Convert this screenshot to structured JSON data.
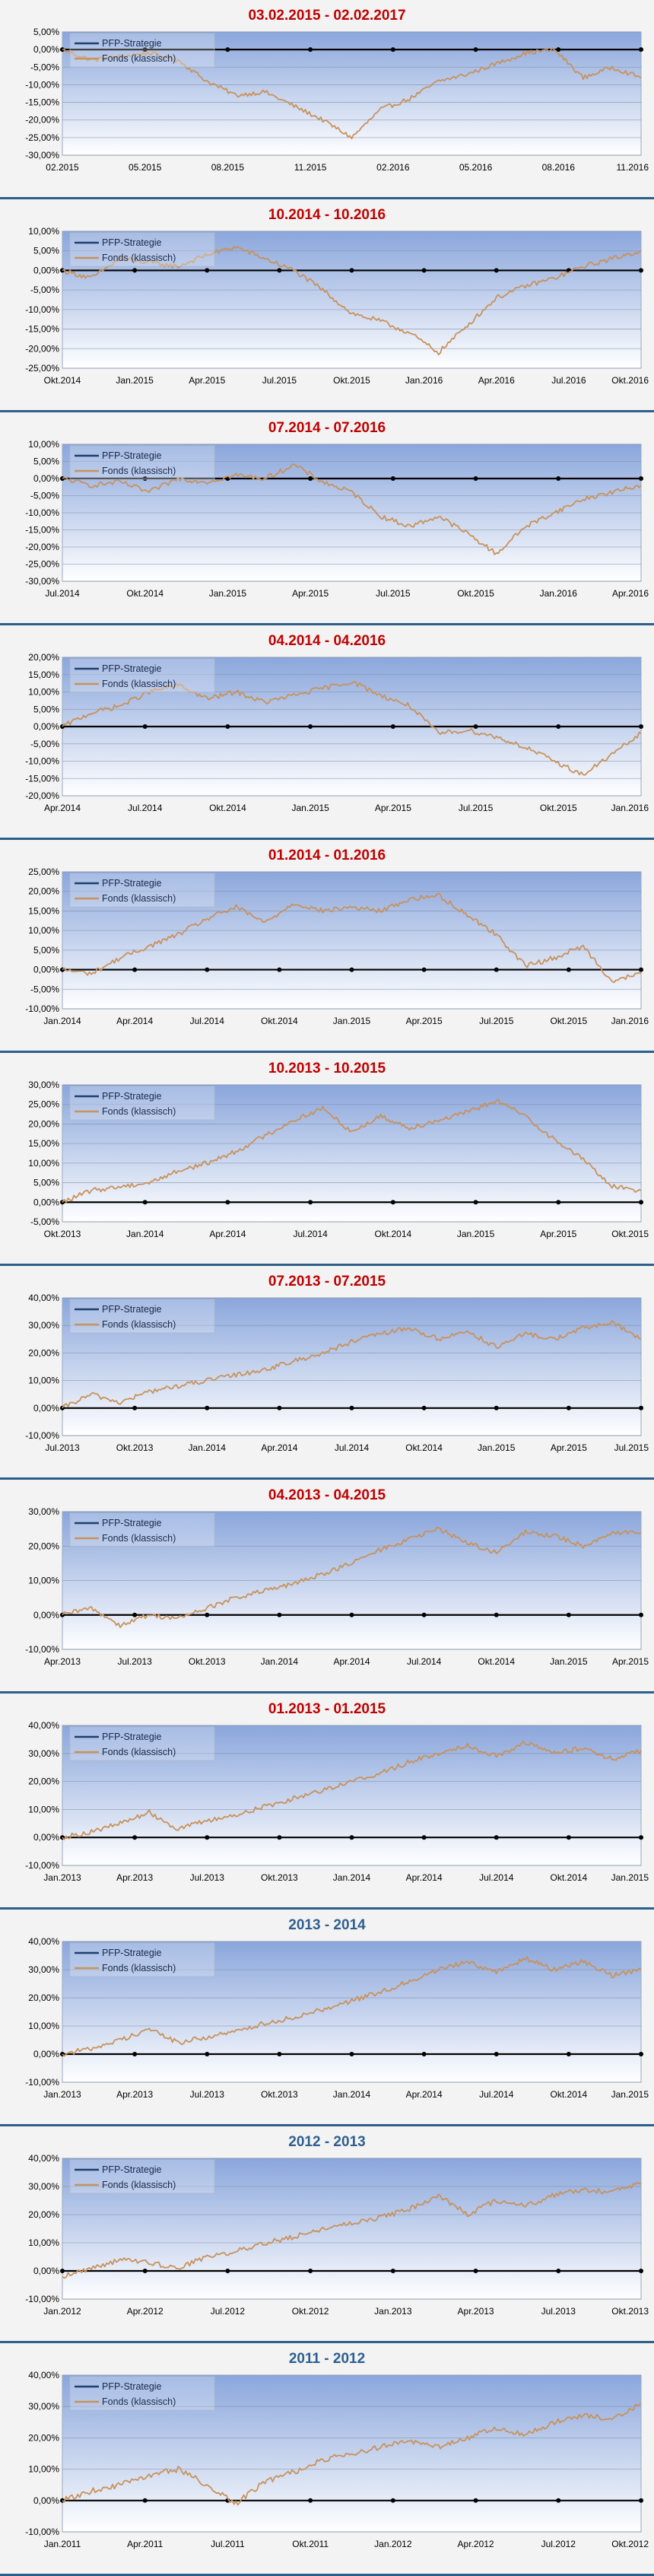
{
  "legend": {
    "series1": "PFP-Strategie",
    "series2": "Fonds (klassisch)"
  },
  "colors": {
    "title_red": "#c00000",
    "title_blue": "#2e5f8f",
    "fund_line": "#c8925c",
    "pfp_line": "#1f3f6e",
    "zero_line": "#000000",
    "plot_top": "#8aa6dc",
    "plot_bottom": "#ffffff",
    "separator": "#2c5f8a"
  },
  "chart_data": [
    {
      "type": "line",
      "title": "03.02.2015 - 02.02.2017",
      "title_color": "red",
      "yticks": [
        "5,00%",
        "0,00%",
        "-5,00%",
        "-10,00%",
        "-15,00%",
        "-20,00%",
        "-25,00%",
        "-30,00%"
      ],
      "ylim": [
        -30,
        5
      ],
      "xticks": [
        "02.2015",
        "05.2015",
        "08.2015",
        "11.2015",
        "02.2016",
        "05.2016",
        "08.2016",
        "11.2016"
      ],
      "series": [
        {
          "name": "Fonds (klassisch)",
          "x": [
            0,
            0.05,
            0.1,
            0.15,
            0.2,
            0.25,
            0.3,
            0.35,
            0.4,
            0.45,
            0.5,
            0.55,
            0.6,
            0.65,
            0.7,
            0.75,
            0.8,
            0.85,
            0.9,
            0.95,
            1
          ],
          "values": [
            0,
            -3,
            -2,
            -1,
            -3,
            -9,
            -13,
            -12,
            -16,
            -20,
            -25,
            -17,
            -14,
            -9,
            -7,
            -4,
            -1,
            0,
            -8,
            -5,
            -8
          ]
        }
      ]
    },
    {
      "type": "line",
      "title": "10.2014 - 10.2016",
      "title_color": "red",
      "yticks": [
        "10,00%",
        "5,00%",
        "0,00%",
        "-5,00%",
        "-10,00%",
        "-15,00%",
        "-20,00%",
        "-25,00%"
      ],
      "ylim": [
        -25,
        10
      ],
      "xticks": [
        "Okt.2014",
        "Jan.2015",
        "Apr.2015",
        "Jul.2015",
        "Okt.2015",
        "Jan.2016",
        "Apr.2016",
        "Jul.2016",
        "Okt.2016"
      ],
      "series": [
        {
          "name": "Fonds (klassisch)",
          "x": [
            0,
            0.05,
            0.1,
            0.15,
            0.2,
            0.25,
            0.3,
            0.35,
            0.4,
            0.45,
            0.5,
            0.55,
            0.6,
            0.65,
            0.7,
            0.75,
            0.8,
            0.85,
            0.9,
            0.95,
            1
          ],
          "values": [
            0,
            -2,
            3,
            2,
            1,
            4,
            6,
            3,
            0,
            -5,
            -11,
            -13,
            -16,
            -21,
            -14,
            -7,
            -4,
            -2,
            1,
            3,
            5
          ]
        }
      ]
    },
    {
      "type": "line",
      "title": "07.2014 - 07.2016",
      "title_color": "red",
      "yticks": [
        "10,00%",
        "5,00%",
        "0,00%",
        "-5,00%",
        "-10,00%",
        "-15,00%",
        "-20,00%",
        "-25,00%",
        "-30,00%"
      ],
      "ylim": [
        -30,
        10
      ],
      "xticks": [
        "Jul.2014",
        "Okt.2014",
        "Jan.2015",
        "Apr.2015",
        "Jul.2015",
        "Okt.2015",
        "Jan.2016",
        "Apr.2016"
      ],
      "series": [
        {
          "name": "Fonds (klassisch)",
          "x": [
            0,
            0.05,
            0.1,
            0.15,
            0.2,
            0.25,
            0.3,
            0.35,
            0.4,
            0.45,
            0.5,
            0.55,
            0.6,
            0.65,
            0.7,
            0.75,
            0.8,
            0.85,
            0.9,
            0.95,
            1
          ],
          "values": [
            0,
            -2,
            -1,
            -4,
            0,
            -1,
            1,
            0,
            4,
            -1,
            -4,
            -11,
            -14,
            -11,
            -16,
            -22,
            -14,
            -10,
            -6,
            -4,
            -2
          ]
        }
      ]
    },
    {
      "type": "line",
      "title": "04.2014 - 04.2016",
      "title_color": "red",
      "yticks": [
        "20,00%",
        "15,00%",
        "10,00%",
        "5,00%",
        "0,00%",
        "-5,00%",
        "-10,00%",
        "-15,00%",
        "-20,00%"
      ],
      "ylim": [
        -20,
        20
      ],
      "xticks": [
        "Apr.2014",
        "Jul.2014",
        "Okt.2014",
        "Jan.2015",
        "Apr.2015",
        "Jul.2015",
        "Okt.2015",
        "Jan.2016"
      ],
      "series": [
        {
          "name": "Fonds (klassisch)",
          "x": [
            0,
            0.05,
            0.1,
            0.15,
            0.2,
            0.25,
            0.3,
            0.35,
            0.4,
            0.45,
            0.5,
            0.55,
            0.6,
            0.65,
            0.7,
            0.75,
            0.8,
            0.85,
            0.9,
            0.95,
            1
          ],
          "values": [
            0,
            4,
            6,
            10,
            12,
            8,
            10,
            7,
            9,
            11,
            13,
            9,
            6,
            -2,
            -1,
            -3,
            -6,
            -10,
            -14,
            -8,
            -2
          ]
        }
      ]
    },
    {
      "type": "line",
      "title": "01.2014 - 01.2016",
      "title_color": "red",
      "yticks": [
        "25,00%",
        "20,00%",
        "15,00%",
        "10,00%",
        "5,00%",
        "0,00%",
        "-5,00%",
        "-10,00%"
      ],
      "ylim": [
        -10,
        25
      ],
      "xticks": [
        "Jan.2014",
        "Apr.2014",
        "Jul.2014",
        "Okt.2014",
        "Jan.2015",
        "Apr.2015",
        "Jul.2015",
        "Okt.2015",
        "Jan.2016"
      ],
      "series": [
        {
          "name": "Fonds (klassisch)",
          "x": [
            0,
            0.05,
            0.1,
            0.15,
            0.2,
            0.25,
            0.3,
            0.35,
            0.4,
            0.45,
            0.5,
            0.55,
            0.6,
            0.65,
            0.7,
            0.75,
            0.8,
            0.85,
            0.9,
            0.95,
            1
          ],
          "values": [
            0,
            -1,
            3,
            6,
            9,
            13,
            16,
            12,
            17,
            15,
            16,
            15,
            18,
            19,
            14,
            9,
            1,
            3,
            6,
            -3,
            -1
          ]
        }
      ]
    },
    {
      "type": "line",
      "title": "10.2013 - 10.2015",
      "title_color": "red",
      "yticks": [
        "30,00%",
        "25,00%",
        "20,00%",
        "15,00%",
        "10,00%",
        "5,00%",
        "0,00%",
        "-5,00%"
      ],
      "ylim": [
        -5,
        30
      ],
      "xticks": [
        "Okt.2013",
        "Jan.2014",
        "Apr.2014",
        "Jul.2014",
        "Okt.2014",
        "Jan.2015",
        "Apr.2015",
        "Okt.2015"
      ],
      "series": [
        {
          "name": "Fonds (klassisch)",
          "x": [
            0,
            0.05,
            0.1,
            0.15,
            0.2,
            0.25,
            0.3,
            0.35,
            0.4,
            0.45,
            0.5,
            0.55,
            0.6,
            0.65,
            0.7,
            0.75,
            0.8,
            0.85,
            0.9,
            0.95,
            1
          ],
          "values": [
            0,
            3,
            4,
            5,
            8,
            10,
            13,
            17,
            21,
            24,
            18,
            22,
            19,
            21,
            23,
            26,
            22,
            16,
            11,
            4,
            3
          ]
        }
      ]
    },
    {
      "type": "line",
      "title": "07.2013 - 07.2015",
      "title_color": "red",
      "yticks": [
        "40,00%",
        "30,00%",
        "20,00%",
        "10,00%",
        "0,00%",
        "-10,00%"
      ],
      "ylim": [
        -10,
        40
      ],
      "xticks": [
        "Jul.2013",
        "Okt.2013",
        "Jan.2014",
        "Apr.2014",
        "Jul.2014",
        "Okt.2014",
        "Jan.2015",
        "Apr.2015",
        "Jul.2015"
      ],
      "series": [
        {
          "name": "Fonds (klassisch)",
          "x": [
            0,
            0.05,
            0.1,
            0.15,
            0.2,
            0.25,
            0.3,
            0.35,
            0.4,
            0.45,
            0.5,
            0.55,
            0.6,
            0.65,
            0.7,
            0.75,
            0.8,
            0.85,
            0.9,
            0.95,
            1
          ],
          "values": [
            0,
            5,
            2,
            6,
            8,
            10,
            12,
            14,
            17,
            20,
            24,
            27,
            29,
            25,
            28,
            22,
            27,
            25,
            29,
            31,
            25
          ]
        }
      ]
    },
    {
      "type": "line",
      "title": "04.2013 - 04.2015",
      "title_color": "red",
      "yticks": [
        "30,00%",
        "20,00%",
        "10,00%",
        "0,00%",
        "-10,00%"
      ],
      "ylim": [
        -10,
        30
      ],
      "xticks": [
        "Apr.2013",
        "Jul.2013",
        "Okt.2013",
        "Jan.2014",
        "Apr.2014",
        "Jul.2014",
        "Okt.2014",
        "Jan.2015",
        "Apr.2015"
      ],
      "series": [
        {
          "name": "Fonds (klassisch)",
          "x": [
            0,
            0.05,
            0.1,
            0.15,
            0.2,
            0.25,
            0.3,
            0.35,
            0.4,
            0.45,
            0.5,
            0.55,
            0.6,
            0.65,
            0.7,
            0.75,
            0.8,
            0.85,
            0.9,
            0.95,
            1
          ],
          "values": [
            0,
            2,
            -3,
            0,
            -1,
            2,
            5,
            7,
            9,
            12,
            15,
            19,
            22,
            25,
            21,
            18,
            24,
            23,
            20,
            24,
            24
          ]
        }
      ]
    },
    {
      "type": "line",
      "title": "01.2013 - 01.2015",
      "title_color": "red",
      "yticks": [
        "40,00%",
        "30,00%",
        "20,00%",
        "10,00%",
        "0,00%",
        "-10,00%"
      ],
      "ylim": [
        -10,
        40
      ],
      "xticks": [
        "Jan.2013",
        "Apr.2013",
        "Jul.2013",
        "Okt.2013",
        "Jan.2014",
        "Apr.2014",
        "Jul.2014",
        "Okt.2014",
        "Jan.2015"
      ],
      "series": [
        {
          "name": "Fonds (klassisch)",
          "x": [
            0,
            0.05,
            0.1,
            0.15,
            0.2,
            0.25,
            0.3,
            0.35,
            0.4,
            0.45,
            0.5,
            0.55,
            0.6,
            0.65,
            0.7,
            0.75,
            0.8,
            0.85,
            0.9,
            0.95,
            1
          ],
          "values": [
            0,
            2,
            5,
            9,
            3,
            6,
            8,
            11,
            14,
            17,
            20,
            23,
            27,
            30,
            33,
            29,
            34,
            30,
            32,
            28,
            31
          ]
        }
      ]
    },
    {
      "type": "line",
      "title": "2013 - 2014",
      "title_color": "blue",
      "yticks": [
        "40,00%",
        "30,00%",
        "20,00%",
        "10,00%",
        "0,00%",
        "-10,00%"
      ],
      "ylim": [
        -10,
        40
      ],
      "xticks": [
        "Jan.2013",
        "Apr.2013",
        "Jul.2013",
        "Okt.2013",
        "Jan.2014",
        "Apr.2014",
        "Jul.2014",
        "Okt.2014",
        "Jan.2015"
      ],
      "series": [
        {
          "name": "Fonds (klassisch)",
          "x": [
            0,
            0.05,
            0.1,
            0.15,
            0.2,
            0.25,
            0.3,
            0.35,
            0.4,
            0.45,
            0.5,
            0.55,
            0.6,
            0.65,
            0.7,
            0.75,
            0.8,
            0.85,
            0.9,
            0.95,
            1
          ],
          "values": [
            0,
            2,
            5,
            9,
            4,
            6,
            8,
            11,
            13,
            16,
            19,
            22,
            26,
            30,
            33,
            29,
            34,
            30,
            33,
            28,
            30
          ]
        }
      ]
    },
    {
      "type": "line",
      "title": "2012 - 2013",
      "title_color": "blue",
      "yticks": [
        "40,00%",
        "30,00%",
        "20,00%",
        "10,00%",
        "0,00%",
        "-10,00%"
      ],
      "ylim": [
        -10,
        40
      ],
      "xticks": [
        "Jan.2012",
        "Apr.2012",
        "Jul.2012",
        "Okt.2012",
        "Jan.2013",
        "Apr.2013",
        "Jul.2013",
        "Okt.2013"
      ],
      "series": [
        {
          "name": "Fonds (klassisch)",
          "x": [
            0,
            0.05,
            0.1,
            0.15,
            0.2,
            0.25,
            0.3,
            0.35,
            0.4,
            0.45,
            0.5,
            0.55,
            0.6,
            0.65,
            0.7,
            0.75,
            0.8,
            0.85,
            0.9,
            0.95,
            1
          ],
          "values": [
            -2,
            1,
            4,
            3,
            1,
            5,
            7,
            10,
            12,
            15,
            17,
            19,
            22,
            27,
            20,
            25,
            23,
            27,
            29,
            28,
            31
          ]
        }
      ]
    },
    {
      "type": "line",
      "title": "2011 - 2012",
      "title_color": "blue",
      "yticks": [
        "40,00%",
        "30,00%",
        "20,00%",
        "10,00%",
        "0,00%",
        "-10,00%"
      ],
      "ylim": [
        -10,
        40
      ],
      "xticks": [
        "Jan.2011",
        "Apr.2011",
        "Jul.2011",
        "Okt.2011",
        "Jan.2012",
        "Apr.2012",
        "Jul.2012",
        "Okt.2012"
      ],
      "series": [
        {
          "name": "Fonds (klassisch)",
          "x": [
            0,
            0.05,
            0.1,
            0.15,
            0.2,
            0.25,
            0.3,
            0.35,
            0.4,
            0.45,
            0.5,
            0.55,
            0.6,
            0.65,
            0.7,
            0.75,
            0.8,
            0.85,
            0.9,
            0.95,
            1
          ],
          "values": [
            0,
            3,
            5,
            8,
            10,
            5,
            -1,
            6,
            9,
            13,
            15,
            17,
            19,
            17,
            20,
            23,
            21,
            25,
            27,
            26,
            31
          ]
        }
      ]
    }
  ]
}
